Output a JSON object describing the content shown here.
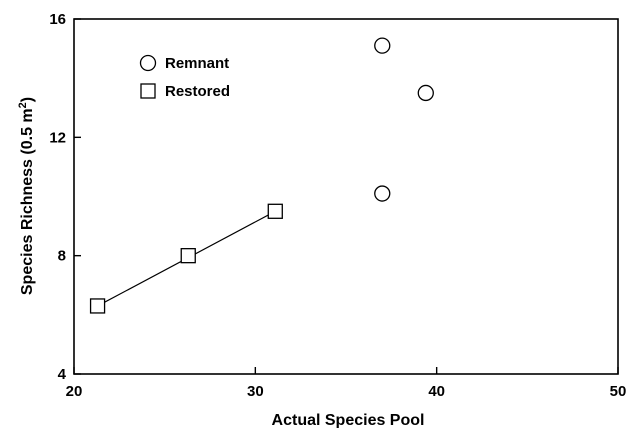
{
  "chart_data": {
    "type": "scatter",
    "xlabel": "Actual Species Pool",
    "ylabel_main": "Species Richness (0.5 m",
    "ylabel_sup": "2",
    "ylabel_close": ")",
    "xlim": [
      20,
      50
    ],
    "ylim": [
      4,
      16
    ],
    "xticks": [
      20,
      30,
      40,
      50
    ],
    "yticks": [
      4,
      8,
      12,
      16
    ],
    "grid": false,
    "legend_position": "top-left",
    "series": [
      {
        "name": "Remnant",
        "marker": "circle",
        "points": [
          {
            "x": 37.0,
            "y": 15.1
          },
          {
            "x": 39.4,
            "y": 13.5
          },
          {
            "x": 37.0,
            "y": 10.1
          }
        ]
      },
      {
        "name": "Restored",
        "marker": "square",
        "points": [
          {
            "x": 21.3,
            "y": 6.3
          },
          {
            "x": 26.3,
            "y": 8.0
          },
          {
            "x": 31.1,
            "y": 9.5
          }
        ],
        "fit_line": {
          "x_from": 21.3,
          "y_from": 6.3,
          "x_to": 31.1,
          "y_to": 9.5
        }
      }
    ]
  }
}
